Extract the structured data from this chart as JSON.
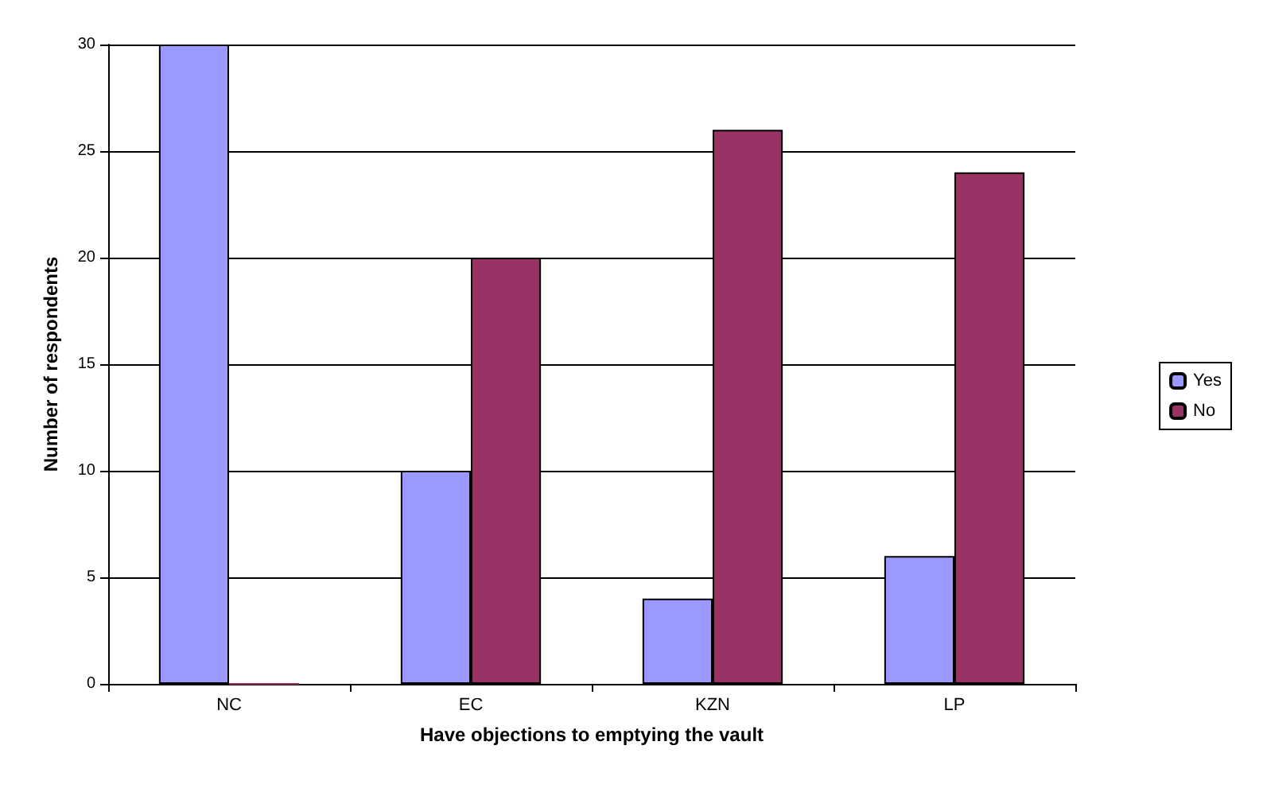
{
  "chart_data": {
    "type": "bar",
    "xlabel": "Have objections to emptying the vault",
    "ylabel": "Number of respondents",
    "categories": [
      "NC",
      "EC",
      "KZN",
      "LP"
    ],
    "series": [
      {
        "name": "Yes",
        "color": "#9999ff",
        "values": [
          30,
          10,
          4,
          6
        ]
      },
      {
        "name": "No",
        "color": "#993366",
        "values": [
          0,
          20,
          26,
          24
        ]
      }
    ],
    "ylim": [
      0,
      30
    ],
    "yticks": [
      0,
      5,
      10,
      15,
      20,
      25,
      30
    ],
    "grid": "y",
    "legend": "right"
  }
}
